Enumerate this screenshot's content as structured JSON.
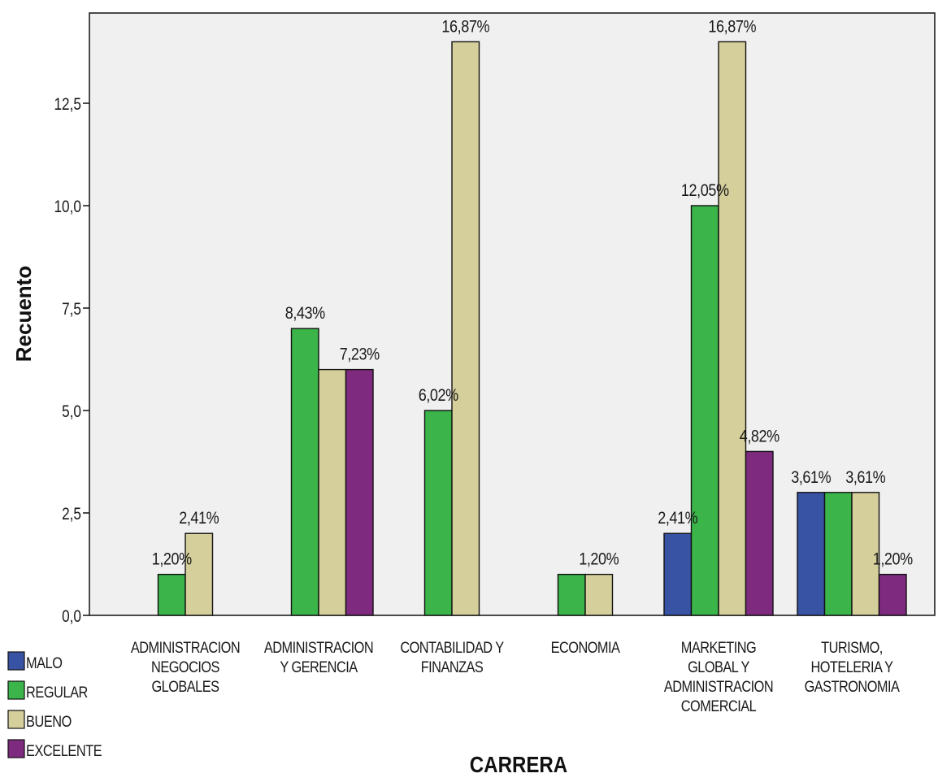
{
  "chart_data": {
    "type": "bar",
    "xlabel": "CARRERA",
    "ylabel": "Recuento",
    "ylim": [
      0,
      14.5
    ],
    "yticks": [
      "0,0",
      "2,5",
      "5,0",
      "7,5",
      "10,0",
      "12,5"
    ],
    "grid": false,
    "legend_position": "bottom-left",
    "categories": [
      "ADMINISTRACION\nNEGOCIOS\nGLOBALES",
      "ADMINISTRACION\nY GERENCIA",
      "CONTABILIDAD Y\nFINANZAS",
      "ECONOMIA",
      "MARKETING\nGLOBAL Y\nADMINISTRACION\nCOMERCIAL",
      "TURISMO,\nHOTELERIA Y\nGASTRONOMIA"
    ],
    "series": [
      {
        "name": "MALO",
        "color": "#3953a4",
        "values": [
          0,
          0,
          0,
          0,
          2,
          3
        ],
        "labels": [
          "",
          "",
          "",
          "",
          "2,41%",
          "3,61%"
        ]
      },
      {
        "name": "REGULAR",
        "color": "#3bb44a",
        "values": [
          1,
          7,
          5,
          1,
          10,
          3
        ],
        "labels": [
          "1,20%",
          "8,43%",
          "6,02%",
          "",
          "12,05%",
          ""
        ]
      },
      {
        "name": "BUENO",
        "color": "#d5cf9b",
        "values": [
          2,
          6,
          14,
          1,
          14,
          3
        ],
        "labels": [
          "2,41%",
          "",
          "16,87%",
          "1,20%",
          "16,87%",
          "3,61%"
        ]
      },
      {
        "name": "EXCELENTE",
        "color": "#7e2a7e",
        "values": [
          0,
          6,
          0,
          0,
          4,
          1
        ],
        "labels": [
          "",
          "7,23%",
          "",
          "",
          "4,82%",
          "1,20%"
        ]
      }
    ]
  }
}
